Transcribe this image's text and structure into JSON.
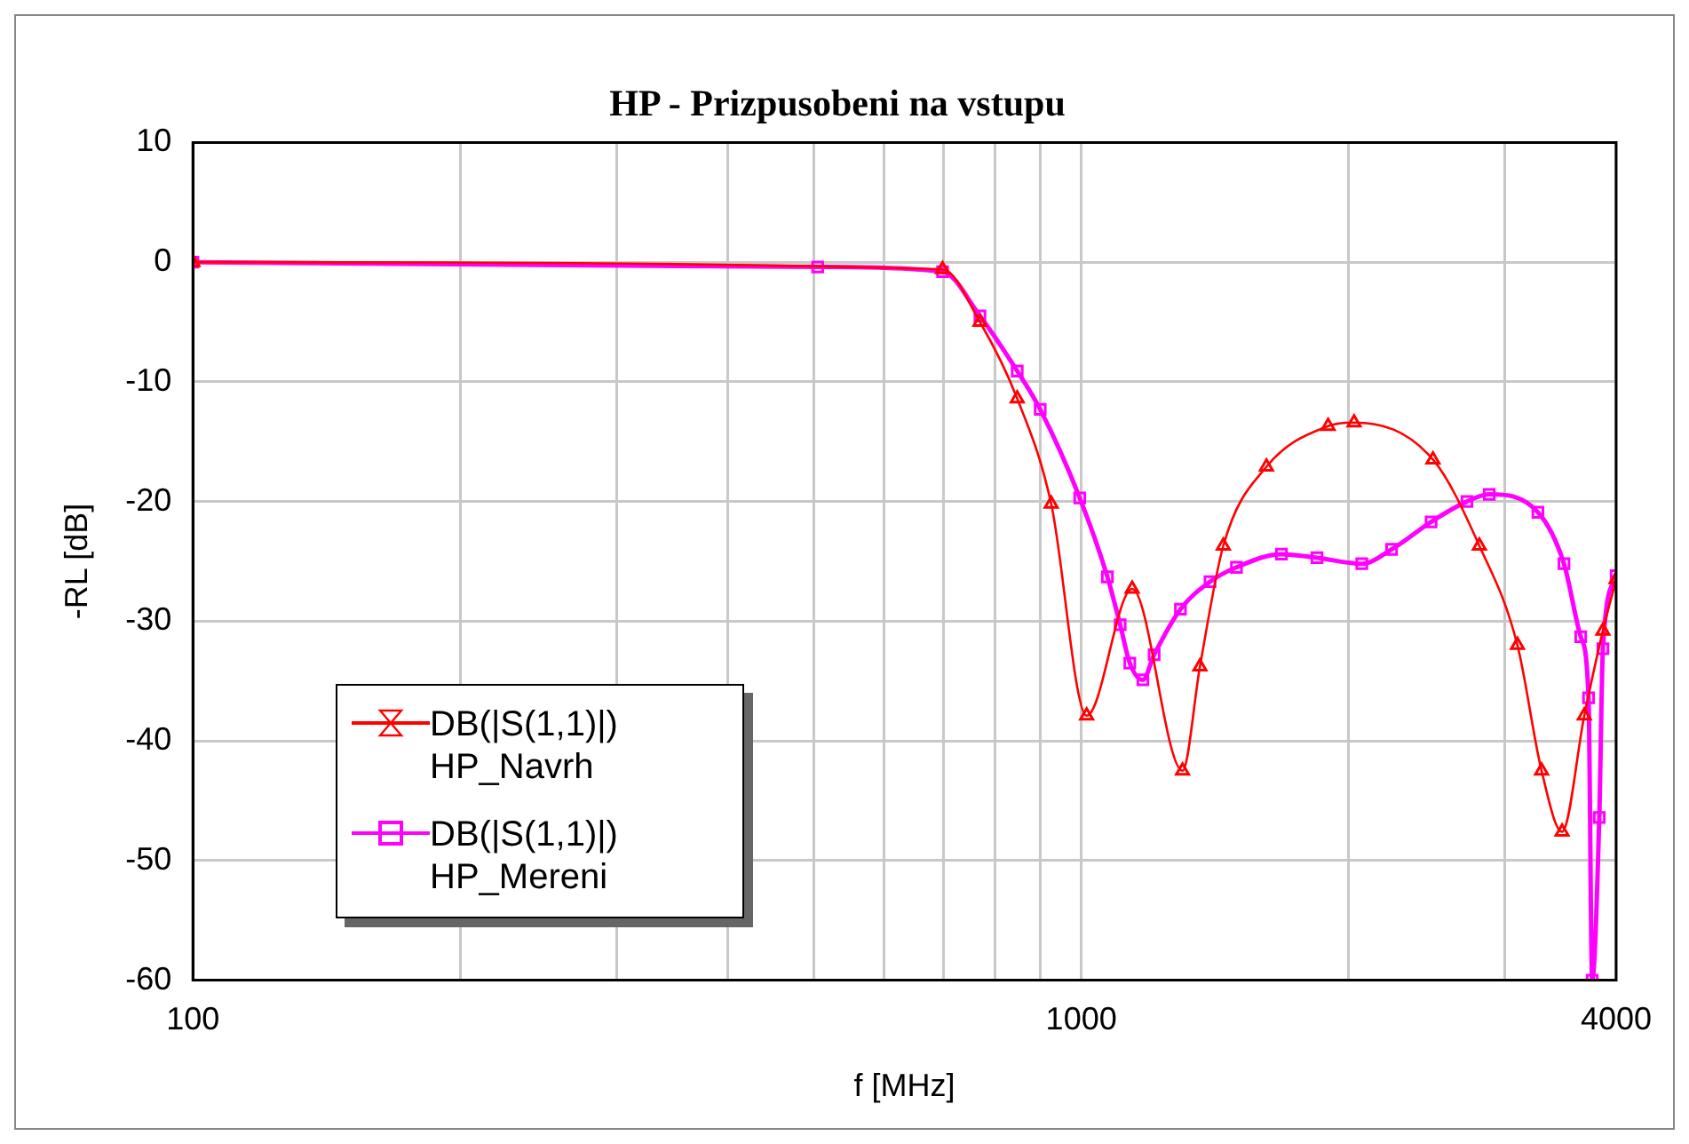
{
  "chart_data": {
    "type": "line",
    "title": "HP - Prizpusobeni na vstupu",
    "xlabel": "f [MHz]",
    "ylabel": "-RL [dB]",
    "log": "x",
    "grid": true,
    "legend": "bottom left",
    "xlim": [
      100,
      4000
    ],
    "xticks": [
      100,
      {
        "value": 200,
        "label": null
      },
      {
        "value": 300,
        "label": null
      },
      {
        "value": 400,
        "label": null
      },
      {
        "value": 500,
        "label": null
      },
      {
        "value": 600,
        "label": null
      },
      {
        "value": 700,
        "label": null
      },
      {
        "value": 800,
        "label": null
      },
      {
        "value": 900,
        "label": null
      },
      1000,
      {
        "value": 2000,
        "label": null
      },
      {
        "value": 3000,
        "label": null
      },
      4000
    ],
    "ylim": [
      -60,
      10
    ],
    "yticks": [
      -60,
      -50,
      -40,
      -30,
      -20,
      -10,
      0,
      10
    ],
    "series": [
      {
        "name": "DB(|S(1,1)|) HP_Navrh",
        "color": "#ff0000",
        "marker": "triangle",
        "x": [
          100,
          698,
          769,
          847,
          925,
          1014,
          1141,
          1300,
          1360,
          1445,
          1616,
          1896,
          2028,
          2488,
          2806,
          3097,
          3297,
          3477,
          3683,
          3865,
          4000
        ],
        "values": [
          0,
          -0.6,
          -5.0,
          -11.4,
          -20.2,
          -37.9,
          -27.3,
          -42.5,
          -33.8,
          -23.7,
          -17.1,
          -13.7,
          -13.4,
          -16.5,
          -23.7,
          -32.0,
          -42.5,
          -47.6,
          -37.9,
          -30.8,
          -26.5
        ]
      },
      {
        "name": "DB(|S(1,1)|) HP_Mereni",
        "color": "#ff00ff",
        "marker": "square",
        "x": [
          100,
          505,
          698,
          769,
          847,
          899,
          996,
          1070,
          1106,
          1134,
          1173,
          1208,
          1293,
          1396,
          1495,
          1680,
          1842,
          2069,
          2235,
          2476,
          2717,
          2879,
          3266,
          3494,
          3649,
          3724,
          3759,
          3829,
          3865,
          4000
        ],
        "values": [
          0,
          -0.4,
          -0.8,
          -4.5,
          -9.1,
          -12.3,
          -19.7,
          -26.3,
          -30.3,
          -33.5,
          -34.9,
          -32.8,
          -29.0,
          -26.7,
          -25.5,
          -24.4,
          -24.7,
          -25.2,
          -24.0,
          -21.7,
          -20.0,
          -19.4,
          -20.9,
          -25.2,
          -31.3,
          -36.4,
          -60,
          -46.4,
          -32.3,
          -26.2
        ]
      }
    ]
  }
}
